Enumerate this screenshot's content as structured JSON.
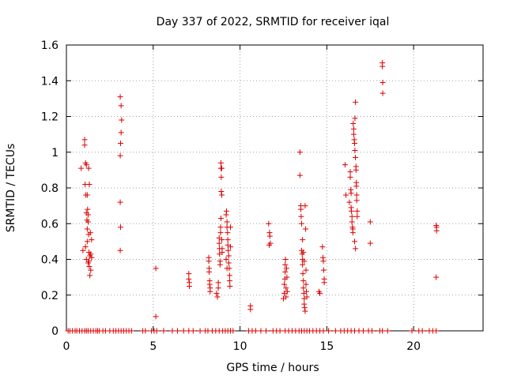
{
  "chart_data": {
    "type": "scatter",
    "title": "Day 337 of 2022, SRMTID for receiver iqal",
    "xlabel": "GPS time / hours",
    "ylabel": "SRMTID / TECUs",
    "xlim": [
      0,
      24
    ],
    "ylim": [
      0,
      1.6
    ],
    "xticks": [
      0,
      5,
      10,
      15,
      20
    ],
    "xtick_labels": [
      "0",
      "5",
      "10",
      "15",
      "20"
    ],
    "yticks": [
      0,
      0.2,
      0.4,
      0.6,
      0.8,
      1.0,
      1.2,
      1.4,
      1.6
    ],
    "ytick_labels": [
      "0",
      "0.2",
      "0.4",
      "0.6",
      "0.8",
      "1",
      "1.2",
      "1.4",
      "1.6"
    ],
    "grid": true,
    "marker": "+",
    "color": "#dd0000",
    "series": [
      {
        "name": "SRMTID",
        "points": [
          [
            0.1,
            0
          ],
          [
            0.2,
            0
          ],
          [
            0.35,
            0
          ],
          [
            0.5,
            0
          ],
          [
            0.6,
            0
          ],
          [
            0.75,
            0
          ],
          [
            0.9,
            0
          ],
          [
            1.05,
            0
          ],
          [
            1.15,
            0
          ],
          [
            1.25,
            0
          ],
          [
            1.4,
            0
          ],
          [
            1.55,
            0
          ],
          [
            1.7,
            0
          ],
          [
            1.8,
            0
          ],
          [
            1.9,
            0
          ],
          [
            2.1,
            0
          ],
          [
            2.25,
            0
          ],
          [
            2.5,
            0
          ],
          [
            2.7,
            0
          ],
          [
            2.85,
            0
          ],
          [
            3.0,
            0
          ],
          [
            3.15,
            0
          ],
          [
            3.3,
            0
          ],
          [
            3.45,
            0
          ],
          [
            3.6,
            0
          ],
          [
            3.75,
            0
          ],
          [
            4.4,
            0
          ],
          [
            4.55,
            0
          ],
          [
            4.9,
            0
          ],
          [
            5.05,
            0
          ],
          [
            5.2,
            0
          ],
          [
            5.6,
            0
          ],
          [
            6.1,
            0
          ],
          [
            6.4,
            0
          ],
          [
            6.75,
            0
          ],
          [
            7.05,
            0
          ],
          [
            7.3,
            0
          ],
          [
            7.7,
            0
          ],
          [
            8.0,
            0
          ],
          [
            8.15,
            0
          ],
          [
            8.4,
            0
          ],
          [
            8.6,
            0
          ],
          [
            8.8,
            0
          ],
          [
            9.0,
            0
          ],
          [
            9.15,
            0
          ],
          [
            9.3,
            0
          ],
          [
            9.45,
            0
          ],
          [
            9.6,
            0
          ],
          [
            10.5,
            0
          ],
          [
            10.7,
            0
          ],
          [
            10.9,
            0
          ],
          [
            11.2,
            0
          ],
          [
            11.5,
            0
          ],
          [
            11.9,
            0
          ],
          [
            12.1,
            0
          ],
          [
            12.3,
            0
          ],
          [
            12.6,
            0
          ],
          [
            12.8,
            0
          ],
          [
            13.0,
            0
          ],
          [
            13.2,
            0
          ],
          [
            13.4,
            0
          ],
          [
            13.55,
            0
          ],
          [
            13.7,
            0
          ],
          [
            13.85,
            0
          ],
          [
            14.0,
            0
          ],
          [
            14.2,
            0
          ],
          [
            14.4,
            0
          ],
          [
            14.6,
            0
          ],
          [
            14.8,
            0
          ],
          [
            15.1,
            0
          ],
          [
            15.5,
            0
          ],
          [
            15.8,
            0
          ],
          [
            16.0,
            0
          ],
          [
            16.2,
            0
          ],
          [
            16.4,
            0
          ],
          [
            16.6,
            0
          ],
          [
            16.85,
            0
          ],
          [
            17.1,
            0
          ],
          [
            17.4,
            0
          ],
          [
            17.6,
            0
          ],
          [
            18.05,
            0
          ],
          [
            18.2,
            0
          ],
          [
            18.5,
            0
          ],
          [
            19.9,
            0
          ],
          [
            20.3,
            0
          ],
          [
            20.5,
            0
          ],
          [
            20.9,
            0
          ],
          [
            21.1,
            0
          ],
          [
            21.3,
            0
          ],
          [
            0.85,
            0.91
          ],
          [
            0.95,
            0.45
          ],
          [
            1.05,
            1.07
          ],
          [
            1.05,
            1.04
          ],
          [
            1.08,
            0.82
          ],
          [
            1.1,
            0.94
          ],
          [
            1.12,
            0.76
          ],
          [
            1.15,
            0.93
          ],
          [
            1.15,
            0.66
          ],
          [
            1.18,
            0.62
          ],
          [
            1.2,
            0.76
          ],
          [
            1.2,
            0.57
          ],
          [
            1.2,
            0.5
          ],
          [
            1.22,
            0.68
          ],
          [
            1.25,
            0.65
          ],
          [
            1.25,
            0.61
          ],
          [
            1.28,
            0.91
          ],
          [
            1.28,
            0.54
          ],
          [
            1.3,
            0.44
          ],
          [
            1.3,
            0.39
          ],
          [
            1.32,
            0.82
          ],
          [
            1.32,
            0.36
          ],
          [
            1.35,
            0.42
          ],
          [
            1.35,
            0.31
          ],
          [
            1.38,
            0.55
          ],
          [
            1.4,
            0.43
          ],
          [
            1.4,
            0.34
          ],
          [
            1.45,
            0.51
          ],
          [
            1.45,
            0.41
          ],
          [
            1.1,
            0.47
          ],
          [
            1.15,
            0.4
          ],
          [
            1.25,
            0.38
          ],
          [
            3.1,
            1.31
          ],
          [
            3.15,
            1.26
          ],
          [
            3.18,
            1.18
          ],
          [
            3.15,
            1.11
          ],
          [
            3.12,
            1.05
          ],
          [
            3.1,
            0.98
          ],
          [
            3.1,
            0.72
          ],
          [
            3.12,
            0.58
          ],
          [
            3.1,
            0.45
          ],
          [
            5.15,
            0.35
          ],
          [
            5.15,
            0.08
          ],
          [
            7.05,
            0.32
          ],
          [
            7.05,
            0.29
          ],
          [
            7.08,
            0.27
          ],
          [
            7.08,
            0.25
          ],
          [
            8.2,
            0.41
          ],
          [
            8.2,
            0.39
          ],
          [
            8.22,
            0.35
          ],
          [
            8.22,
            0.33
          ],
          [
            8.25,
            0.28
          ],
          [
            8.25,
            0.26
          ],
          [
            8.28,
            0.24
          ],
          [
            8.28,
            0.22
          ],
          [
            8.65,
            0.21
          ],
          [
            8.7,
            0.19
          ],
          [
            8.75,
            0.27
          ],
          [
            8.75,
            0.24
          ],
          [
            8.8,
            0.52
          ],
          [
            8.8,
            0.49
          ],
          [
            8.82,
            0.46
          ],
          [
            8.82,
            0.43
          ],
          [
            8.85,
            0.39
          ],
          [
            8.85,
            0.37
          ],
          [
            8.88,
            0.58
          ],
          [
            8.88,
            0.55
          ],
          [
            8.9,
            0.63
          ],
          [
            8.9,
            0.91
          ],
          [
            8.9,
            0.94
          ],
          [
            8.95,
            0.91
          ],
          [
            8.92,
            0.86
          ],
          [
            8.92,
            0.78
          ],
          [
            8.95,
            0.76
          ],
          [
            8.95,
            0.51
          ],
          [
            8.97,
            0.46
          ],
          [
            8.97,
            0.44
          ],
          [
            9.2,
            0.65
          ],
          [
            9.22,
            0.67
          ],
          [
            9.25,
            0.61
          ],
          [
            9.25,
            0.58
          ],
          [
            9.28,
            0.55
          ],
          [
            9.3,
            0.51
          ],
          [
            9.3,
            0.48
          ],
          [
            9.32,
            0.45
          ],
          [
            9.35,
            0.42
          ],
          [
            9.35,
            0.38
          ],
          [
            9.38,
            0.35
          ],
          [
            9.4,
            0.31
          ],
          [
            9.4,
            0.28
          ],
          [
            9.42,
            0.25
          ],
          [
            9.45,
            0.58
          ],
          [
            9.45,
            0.47
          ],
          [
            9.2,
            0.4
          ],
          [
            9.25,
            0.35
          ],
          [
            10.6,
            0.14
          ],
          [
            10.6,
            0.12
          ],
          [
            11.65,
            0.6
          ],
          [
            11.7,
            0.55
          ],
          [
            11.72,
            0.53
          ],
          [
            11.75,
            0.49
          ],
          [
            11.68,
            0.48
          ],
          [
            12.5,
            0.18
          ],
          [
            12.55,
            0.21
          ],
          [
            12.55,
            0.26
          ],
          [
            12.58,
            0.29
          ],
          [
            12.6,
            0.33
          ],
          [
            12.6,
            0.37
          ],
          [
            12.62,
            0.4
          ],
          [
            12.65,
            0.24
          ],
          [
            12.65,
            0.19
          ],
          [
            12.68,
            0.35
          ],
          [
            12.7,
            0.3
          ],
          [
            12.72,
            0.22
          ],
          [
            13.45,
            1.0
          ],
          [
            13.45,
            0.87
          ],
          [
            13.5,
            0.7
          ],
          [
            13.5,
            0.68
          ],
          [
            13.52,
            0.64
          ],
          [
            13.55,
            0.6
          ],
          [
            13.55,
            0.45
          ],
          [
            13.58,
            0.43
          ],
          [
            13.6,
            0.4
          ],
          [
            13.6,
            0.37
          ],
          [
            13.62,
            0.32
          ],
          [
            13.65,
            0.28
          ],
          [
            13.65,
            0.24
          ],
          [
            13.68,
            0.21
          ],
          [
            13.7,
            0.18
          ],
          [
            13.7,
            0.15
          ],
          [
            13.72,
            0.13
          ],
          [
            13.75,
            0.11
          ],
          [
            13.75,
            0.7
          ],
          [
            13.78,
            0.57
          ],
          [
            13.8,
            0.34
          ],
          [
            13.8,
            0.26
          ],
          [
            13.82,
            0.22
          ],
          [
            13.85,
            0.19
          ],
          [
            13.6,
            0.51
          ],
          [
            13.65,
            0.44
          ],
          [
            13.7,
            0.39
          ],
          [
            14.55,
            0.22
          ],
          [
            14.6,
            0.21
          ],
          [
            14.75,
            0.47
          ],
          [
            14.78,
            0.41
          ],
          [
            14.8,
            0.39
          ],
          [
            14.82,
            0.34
          ],
          [
            14.85,
            0.29
          ],
          [
            14.85,
            0.27
          ],
          [
            16.05,
            0.93
          ],
          [
            16.1,
            0.76
          ],
          [
            16.3,
            0.72
          ],
          [
            16.35,
            0.89
          ],
          [
            16.35,
            0.86
          ],
          [
            16.38,
            0.79
          ],
          [
            16.4,
            0.77
          ],
          [
            16.4,
            0.69
          ],
          [
            16.42,
            0.67
          ],
          [
            16.45,
            0.64
          ],
          [
            16.45,
            0.61
          ],
          [
            16.48,
            0.58
          ],
          [
            16.5,
            0.57
          ],
          [
            16.5,
            0.55
          ],
          [
            16.52,
            1.16
          ],
          [
            16.55,
            1.13
          ],
          [
            16.55,
            1.1
          ],
          [
            16.58,
            1.07
          ],
          [
            16.6,
            1.05
          ],
          [
            16.62,
            1.19
          ],
          [
            16.62,
            1.01
          ],
          [
            16.65,
            1.28
          ],
          [
            16.65,
            0.97
          ],
          [
            16.68,
            0.92
          ],
          [
            16.68,
            0.9
          ],
          [
            16.7,
            0.83
          ],
          [
            16.7,
            0.81
          ],
          [
            16.72,
            0.76
          ],
          [
            16.72,
            0.73
          ],
          [
            16.75,
            0.67
          ],
          [
            16.75,
            0.64
          ],
          [
            16.6,
            0.5
          ],
          [
            16.65,
            0.46
          ],
          [
            17.5,
            0.61
          ],
          [
            17.5,
            0.49
          ],
          [
            18.2,
            1.5
          ],
          [
            18.2,
            1.48
          ],
          [
            18.22,
            1.39
          ],
          [
            18.22,
            1.33
          ],
          [
            21.3,
            0.59
          ],
          [
            21.32,
            0.58
          ],
          [
            21.32,
            0.56
          ],
          [
            21.3,
            0.3
          ]
        ]
      }
    ]
  }
}
